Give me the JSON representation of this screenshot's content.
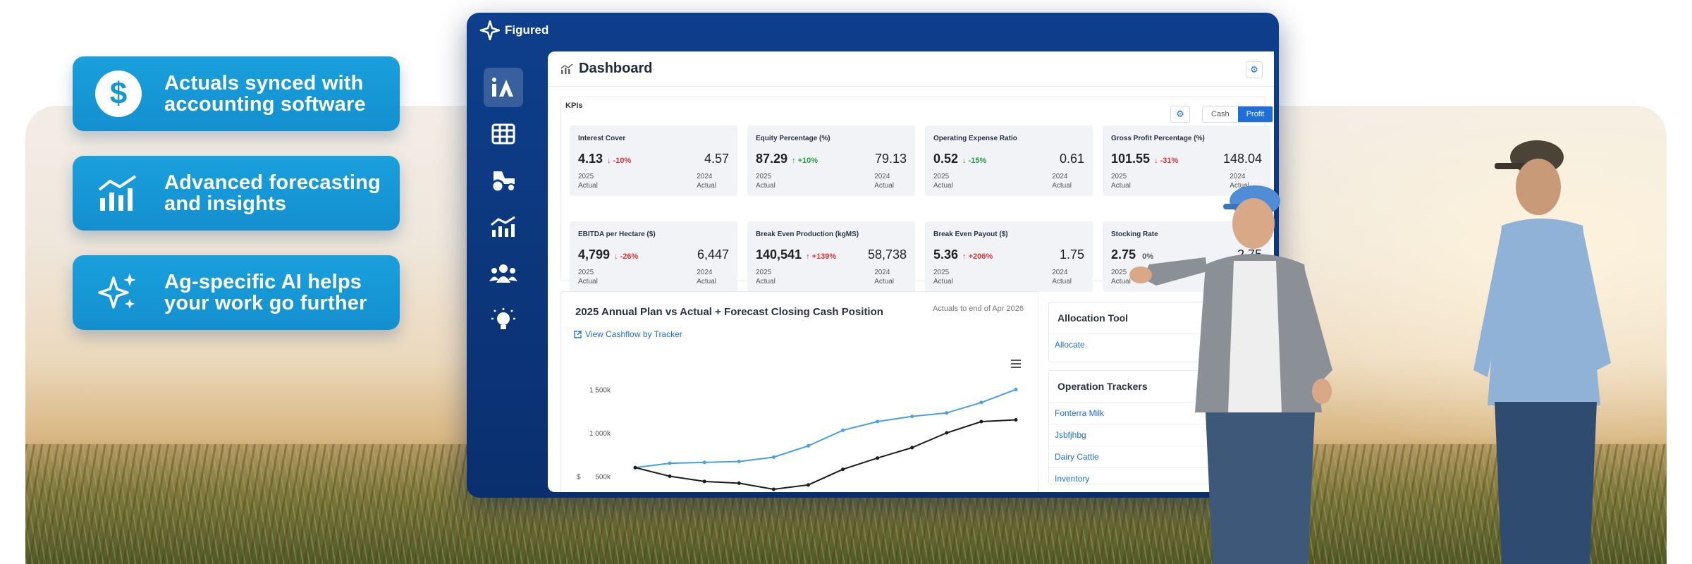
{
  "features": [
    {
      "icon": "dollar-icon",
      "line1": "Actuals synced with",
      "line2": "accounting software"
    },
    {
      "icon": "chart-icon",
      "line1": "Advanced forecasting",
      "line2": "and insights"
    },
    {
      "icon": "sparkles-icon",
      "line1": "Ag-specific AI helps",
      "line2": "your work go further"
    }
  ],
  "app": {
    "brand": "Figured",
    "dollar_glyph": "$",
    "nav": [
      "home-icon",
      "table-icon",
      "tractor-icon",
      "analytics-icon",
      "team-icon",
      "lightbulb-icon"
    ],
    "dashboard_title": "Dashboard",
    "kpis_label": "KPIs",
    "toggle": {
      "cash": "Cash",
      "profit": "Profit",
      "selected": "Profit"
    },
    "kpis": [
      {
        "name": "Interest Cover",
        "value": "4.13",
        "change": "-10%",
        "dir": "down",
        "prev": "4.57",
        "y1": "2025",
        "y2": "2024",
        "t1": "Actual",
        "t2": "Actual"
      },
      {
        "name": "Equity Percentage (%)",
        "value": "87.29",
        "change": "+10%",
        "dir": "up",
        "prev": "79.13",
        "y1": "2025",
        "y2": "2024",
        "t1": "Actual",
        "t2": "Actual"
      },
      {
        "name": "Operating Expense Ratio",
        "value": "0.52",
        "change": "-15%",
        "dir": "down-good",
        "prev": "0.61",
        "y1": "2025",
        "y2": "2024",
        "t1": "Actual",
        "t2": "Actual"
      },
      {
        "name": "Gross Profit Percentage (%)",
        "value": "101.55",
        "change": "-31%",
        "dir": "down",
        "prev": "148.04",
        "y1": "2025",
        "y2": "2024",
        "t1": "Actual",
        "t2": "Actual"
      },
      {
        "name": "EBITDA per Hectare ($)",
        "value": "4,799",
        "change": "-26%",
        "dir": "down",
        "prev": "6,447",
        "y1": "2025",
        "y2": "2024",
        "t1": "Actual",
        "t2": "Actual"
      },
      {
        "name": "Break Even Production (kgMS)",
        "value": "140,541",
        "change": "+139%",
        "dir": "up-bad",
        "prev": "58,738",
        "y1": "2025",
        "y2": "2024",
        "t1": "Actual",
        "t2": "Actual"
      },
      {
        "name": "Break Even Payout ($)",
        "value": "5.36",
        "change": "+206%",
        "dir": "up-bad",
        "prev": "1.75",
        "y1": "2025",
        "y2": "2024",
        "t1": "Actual",
        "t2": "Actual"
      },
      {
        "name": "Stocking Rate",
        "value": "2.75",
        "change": "0%",
        "dir": "flat",
        "prev": "2.75",
        "y1": "2025",
        "y2": "2024",
        "t1": "Actual",
        "t2": "Actual"
      }
    ],
    "chart_panel": {
      "title": "2025 Annual Plan vs Actual + Forecast Closing Cash Position",
      "note": "Actuals to end of Apr 2026",
      "link": "View Cashflow by Tracker"
    },
    "allocation": {
      "title": "Allocation Tool",
      "link": "Allocate"
    },
    "trackers": {
      "title": "Operation Trackers",
      "items": [
        "Fonterra Milk",
        "Jsbfjhbg",
        "Dairy Cattle",
        "Inventory"
      ]
    }
  },
  "chart_data": {
    "type": "line",
    "title": "2025 Annual Plan vs Actual + Forecast Closing Cash Position",
    "xlabel": "",
    "ylabel": "$",
    "yticks": [
      "1 500k",
      "1 000k",
      "500k"
    ],
    "ylim": [
      350000,
      1650000
    ],
    "x": [
      1,
      2,
      3,
      4,
      5,
      6,
      7,
      8,
      9,
      10,
      11,
      12
    ],
    "series": [
      {
        "color": "#4a9ee8",
        "values": [
          600000,
          650000,
          660000,
          670000,
          720000,
          850000,
          1030000,
          1130000,
          1190000,
          1230000,
          1350000,
          1500000
        ]
      },
      {
        "color": "#1c1c1c",
        "values": [
          600000,
          500000,
          440000,
          420000,
          350000,
          400000,
          580000,
          710000,
          830000,
          1000000,
          1130000,
          1150000
        ]
      }
    ],
    "tail": [
      1500000,
      1310000
    ],
    "grid": false
  },
  "colors": {
    "brand_blue": "#138fd0",
    "window_navy": "#0e3f8c",
    "accent": "#1e6fdc",
    "up": "#25a244",
    "down": "#e0343a"
  }
}
